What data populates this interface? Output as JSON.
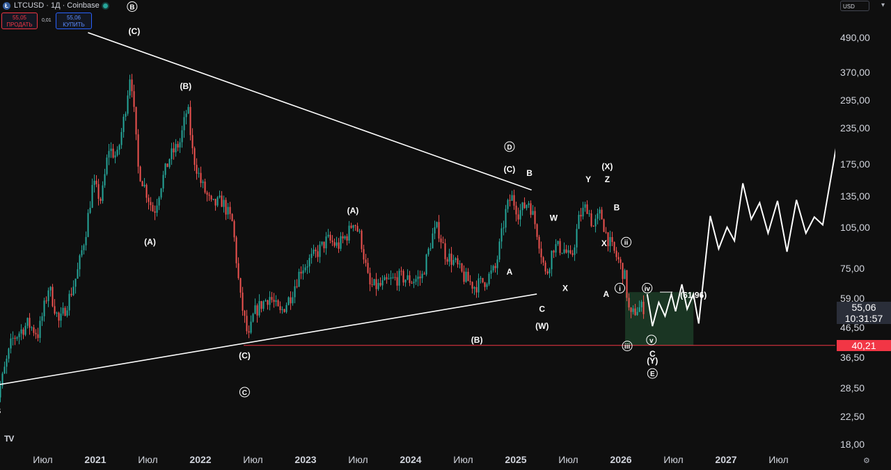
{
  "header": {
    "symbol": "LTCUSD · 1Д · Coinbase",
    "coin_icon": "litecoin-icon",
    "sell_price": "55,05",
    "sell_label": "ПРОДАТЬ",
    "spread": "0,01",
    "buy_price": "55,06",
    "buy_label": "КУПИТЬ"
  },
  "price_axis": {
    "currency": "USD",
    "ticks": [
      {
        "label": "490,00",
        "value": 490
      },
      {
        "label": "370,00",
        "value": 370
      },
      {
        "label": "295,00",
        "value": 295
      },
      {
        "label": "235,00",
        "value": 235
      },
      {
        "label": "175,00",
        "value": 175
      },
      {
        "label": "135,00",
        "value": 135
      },
      {
        "label": "105,00",
        "value": 105
      },
      {
        "label": "75,00",
        "value": 75
      },
      {
        "label": "59,00",
        "value": 59
      },
      {
        "label": "46,50",
        "value": 46.5
      },
      {
        "label": "36,50",
        "value": 36.5
      },
      {
        "label": "28,50",
        "value": 28.5
      },
      {
        "label": "22,50",
        "value": 22.5
      },
      {
        "label": "18,00",
        "value": 18
      }
    ],
    "current_price": "55,06",
    "countdown": "10:31:57",
    "level_price": "40,21"
  },
  "time_axis": {
    "ticks": [
      {
        "label": "Июл",
        "t": 2020.5
      },
      {
        "label": "2021",
        "t": 2021.0
      },
      {
        "label": "Июл",
        "t": 2021.5
      },
      {
        "label": "2022",
        "t": 2022.0
      },
      {
        "label": "Июл",
        "t": 2022.5
      },
      {
        "label": "2023",
        "t": 2023.0
      },
      {
        "label": "Июл",
        "t": 2023.5
      },
      {
        "label": "2024",
        "t": 2024.0
      },
      {
        "label": "Июл",
        "t": 2024.5
      },
      {
        "label": "2025",
        "t": 2025.0
      },
      {
        "label": "Июл",
        "t": 2025.5
      },
      {
        "label": "2026",
        "t": 2026.0
      },
      {
        "label": "Июл",
        "t": 2026.5
      },
      {
        "label": "2027",
        "t": 2027.0
      },
      {
        "label": "Июл",
        "t": 2027.5
      }
    ]
  },
  "chart_data": {
    "type": "candlestick",
    "title": "LTCUSD · 1Д · Coinbase",
    "scale": "log",
    "ylim": [
      18,
      560
    ],
    "xlim": [
      2020.03,
      2028.0
    ],
    "grid": false,
    "colors": {
      "up": "#26a69a",
      "down": "#ef5350",
      "lines": "#ffffff",
      "level": "#f23645",
      "zone": "#1c3a26"
    },
    "price_path": [
      [
        2020.03,
        44
      ],
      [
        2020.06,
        26
      ],
      [
        2020.2,
        42
      ],
      [
        2020.35,
        48
      ],
      [
        2020.45,
        44
      ],
      [
        2020.55,
        65
      ],
      [
        2020.65,
        48
      ],
      [
        2020.75,
        60
      ],
      [
        2020.82,
        72
      ],
      [
        2020.9,
        100
      ],
      [
        2020.97,
        150
      ],
      [
        2021.05,
        130
      ],
      [
        2021.12,
        200
      ],
      [
        2021.2,
        185
      ],
      [
        2021.27,
        260
      ],
      [
        2021.33,
        380
      ],
      [
        2021.4,
        170
      ],
      [
        2021.45,
        150
      ],
      [
        2021.55,
        118
      ],
      [
        2021.62,
        150
      ],
      [
        2021.7,
        185
      ],
      [
        2021.8,
        210
      ],
      [
        2021.87,
        280
      ],
      [
        2021.92,
        190
      ],
      [
        2022.0,
        150
      ],
      [
        2022.1,
        125
      ],
      [
        2022.2,
        130
      ],
      [
        2022.3,
        108
      ],
      [
        2022.37,
        60
      ],
      [
        2022.45,
        42
      ],
      [
        2022.5,
        52
      ],
      [
        2022.55,
        55
      ],
      [
        2022.65,
        60
      ],
      [
        2022.75,
        52
      ],
      [
        2022.85,
        60
      ],
      [
        2022.95,
        75
      ],
      [
        2023.0,
        78
      ],
      [
        2023.1,
        85
      ],
      [
        2023.2,
        95
      ],
      [
        2023.3,
        90
      ],
      [
        2023.4,
        100
      ],
      [
        2023.45,
        112
      ],
      [
        2023.52,
        95
      ],
      [
        2023.6,
        65
      ],
      [
        2023.7,
        65
      ],
      [
        2023.8,
        68
      ],
      [
        2023.9,
        70
      ],
      [
        2024.0,
        68
      ],
      [
        2024.1,
        70
      ],
      [
        2024.2,
        98
      ],
      [
        2024.25,
        105
      ],
      [
        2024.32,
        85
      ],
      [
        2024.42,
        78
      ],
      [
        2024.5,
        70
      ],
      [
        2024.6,
        65
      ],
      [
        2024.7,
        68
      ],
      [
        2024.8,
        75
      ],
      [
        2024.9,
        120
      ],
      [
        2024.95,
        135
      ],
      [
        2025.02,
        118
      ],
      [
        2025.12,
        130
      ],
      [
        2025.2,
        100
      ],
      [
        2025.28,
        70
      ],
      [
        2025.35,
        90
      ],
      [
        2025.45,
        88
      ],
      [
        2025.52,
        80
      ],
      [
        2025.6,
        115
      ],
      [
        2025.67,
        125
      ],
      [
        2025.73,
        105
      ],
      [
        2025.8,
        118
      ],
      [
        2025.85,
        100
      ],
      [
        2025.9,
        90
      ],
      [
        2025.97,
        80
      ],
      [
        2026.03,
        70
      ],
      [
        2026.08,
        50
      ],
      [
        2026.14,
        54
      ],
      [
        2026.22,
        55
      ]
    ],
    "annotations": [
      {
        "text": "B",
        "t": 2021.35,
        "y": 630,
        "circled": true
      },
      {
        "text": "(C)",
        "t": 2021.37,
        "y": 515
      },
      {
        "text": "(B)",
        "t": 2021.86,
        "y": 330
      },
      {
        "text": "(A)",
        "t": 2021.52,
        "y": 93
      },
      {
        "text": "(C)",
        "t": 2022.42,
        "y": 37
      },
      {
        "text": "C",
        "t": 2022.42,
        "y": 27.5,
        "circled": true
      },
      {
        "text": "(A)",
        "t": 2023.45,
        "y": 120
      },
      {
        "text": "(B)",
        "t": 2024.63,
        "y": 42
      },
      {
        "text": "D",
        "t": 2024.94,
        "y": 202,
        "circled": true
      },
      {
        "text": "(C)",
        "t": 2024.94,
        "y": 168
      },
      {
        "text": "B",
        "t": 2025.13,
        "y": 163
      },
      {
        "text": "A",
        "t": 2024.94,
        "y": 73
      },
      {
        "text": "C",
        "t": 2025.25,
        "y": 54
      },
      {
        "text": "(W)",
        "t": 2025.25,
        "y": 47
      },
      {
        "text": "W",
        "t": 2025.36,
        "y": 113
      },
      {
        "text": "X",
        "t": 2025.47,
        "y": 64
      },
      {
        "text": "Y",
        "t": 2025.69,
        "y": 155
      },
      {
        "text": "Z",
        "t": 2025.87,
        "y": 155
      },
      {
        "text": "(X)",
        "t": 2025.87,
        "y": 172
      },
      {
        "text": "B",
        "t": 2025.96,
        "y": 123
      },
      {
        "text": "X",
        "t": 2025.84,
        "y": 92
      },
      {
        "text": "A",
        "t": 2025.86,
        "y": 61
      },
      {
        "text": "ii",
        "t": 2026.05,
        "y": 93,
        "circled": true
      },
      {
        "text": "i",
        "t": 2025.99,
        "y": 64,
        "circled": true
      },
      {
        "text": "iii",
        "t": 2026.06,
        "y": 40,
        "circled": true
      },
      {
        "text": "iv",
        "t": 2026.25,
        "y": 64,
        "circled": true
      },
      {
        "text": "v",
        "t": 2026.29,
        "y": 42,
        "circled": true
      },
      {
        "text": "C",
        "t": 2026.3,
        "y": 37.5
      },
      {
        "text": "(Y)",
        "t": 2026.3,
        "y": 35.5
      },
      {
        "text": "E",
        "t": 2026.3,
        "y": 32,
        "circled": true
      },
      {
        "text": "(B",
        "t": 2020.06,
        "y": 23.6
      },
      {
        "text": "(61,96)",
        "t": 2026.69,
        "y": 60.5
      }
    ],
    "trendlines": [
      {
        "name": "upper",
        "from": [
          2020.93,
          510
        ],
        "to": [
          2025.15,
          142
        ]
      },
      {
        "name": "lower",
        "from": [
          2020.03,
          29
        ],
        "to": [
          2025.2,
          61
        ]
      }
    ],
    "horizontal_level": 40.21,
    "projection_path": [
      [
        2026.25,
        61
      ],
      [
        2026.3,
        47
      ],
      [
        2026.36,
        57
      ],
      [
        2026.42,
        51
      ],
      [
        2026.48,
        61
      ],
      [
        2026.52,
        53
      ],
      [
        2026.58,
        66
      ],
      [
        2026.63,
        54
      ],
      [
        2026.69,
        61
      ],
      [
        2026.74,
        48
      ],
      [
        2026.85,
        115
      ],
      [
        2026.93,
        88
      ],
      [
        2027.01,
        105
      ],
      [
        2027.08,
        94
      ],
      [
        2027.16,
        150
      ],
      [
        2027.24,
        112
      ],
      [
        2027.32,
        128
      ],
      [
        2027.4,
        100
      ],
      [
        2027.49,
        130
      ],
      [
        2027.58,
        86
      ],
      [
        2027.67,
        131
      ],
      [
        2027.76,
        100
      ],
      [
        2027.84,
        114
      ],
      [
        2027.92,
        107
      ],
      [
        2028.1,
        260
      ]
    ],
    "zone": {
      "t0": 2026.04,
      "t1": 2026.69,
      "y0": 40.21,
      "y1": 61.96,
      "target": "61,96"
    }
  }
}
